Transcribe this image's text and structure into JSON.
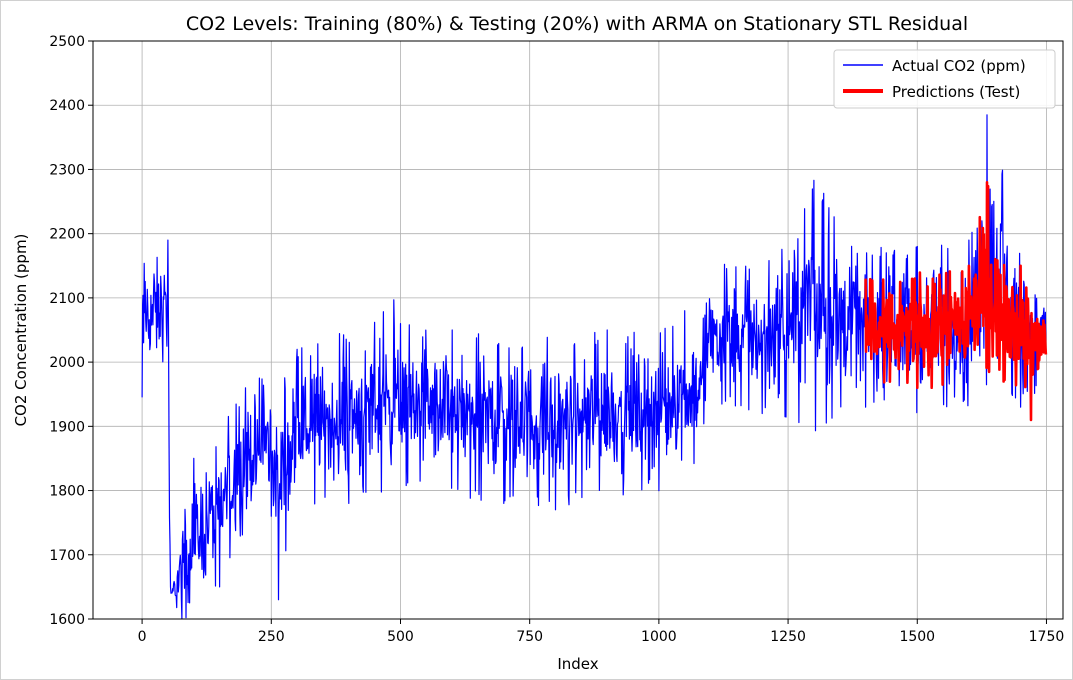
{
  "chart_data": {
    "type": "line",
    "title": "CO2 Levels: Training (80%) & Testing (20%) with ARMA on Stationary STL Residual",
    "xlabel": "Index",
    "ylabel": "CO2 Concentration (ppm)",
    "xlim": [
      -95,
      1782
    ],
    "ylim": [
      1600,
      2500
    ],
    "grid": true,
    "legend_position": "top-right",
    "x_ticks": [
      0,
      250,
      500,
      750,
      1000,
      1250,
      1500,
      1750
    ],
    "y_ticks": [
      1600,
      1700,
      1800,
      1900,
      2000,
      2100,
      2200,
      2300,
      2400,
      2500
    ],
    "series": [
      {
        "name": "Actual CO2 (ppm)",
        "color": "#0000ff",
        "x_range": [
          0,
          1749
        ],
        "approx_envelope": [
          {
            "x": 0,
            "low": 1945,
            "high": 2195
          },
          {
            "x": 50,
            "low": 1980,
            "high": 2190
          },
          {
            "x": 55,
            "low": 1600,
            "high": 1660
          },
          {
            "x": 100,
            "low": 1600,
            "high": 1850
          },
          {
            "x": 150,
            "low": 1650,
            "high": 1900
          },
          {
            "x": 200,
            "low": 1740,
            "high": 1960
          },
          {
            "x": 250,
            "low": 1760,
            "high": 1990
          },
          {
            "x": 264,
            "low": 1630,
            "high": 1980
          },
          {
            "x": 300,
            "low": 1770,
            "high": 2020
          },
          {
            "x": 400,
            "low": 1780,
            "high": 2050
          },
          {
            "x": 487,
            "low": 1800,
            "high": 2097
          },
          {
            "x": 500,
            "low": 1800,
            "high": 2060
          },
          {
            "x": 600,
            "low": 1790,
            "high": 2050
          },
          {
            "x": 700,
            "low": 1780,
            "high": 2040
          },
          {
            "x": 800,
            "low": 1770,
            "high": 2040
          },
          {
            "x": 900,
            "low": 1790,
            "high": 2050
          },
          {
            "x": 1000,
            "low": 1800,
            "high": 2060
          },
          {
            "x": 1050,
            "low": 1830,
            "high": 2080
          },
          {
            "x": 1085,
            "low": 1850,
            "high": 2090
          },
          {
            "x": 1090,
            "low": 1940,
            "high": 2150
          },
          {
            "x": 1200,
            "low": 1920,
            "high": 2160
          },
          {
            "x": 1300,
            "low": 1890,
            "high": 2283
          },
          {
            "x": 1400,
            "low": 1930,
            "high": 2180
          },
          {
            "x": 1500,
            "low": 1920,
            "high": 2180
          },
          {
            "x": 1600,
            "low": 1930,
            "high": 2190
          },
          {
            "x": 1635,
            "low": 1960,
            "high": 2385
          },
          {
            "x": 1700,
            "low": 1930,
            "high": 2200
          },
          {
            "x": 1749,
            "low": 1960,
            "high": 2120
          }
        ]
      },
      {
        "name": "Predictions (Test)",
        "color": "#ff0000",
        "x_range": [
          1400,
          1749
        ],
        "approx_envelope": [
          {
            "x": 1400,
            "low": 1965,
            "high": 2130
          },
          {
            "x": 1500,
            "low": 1960,
            "high": 2140
          },
          {
            "x": 1600,
            "low": 1960,
            "high": 2150
          },
          {
            "x": 1635,
            "low": 1980,
            "high": 2280
          },
          {
            "x": 1700,
            "low": 1955,
            "high": 2150
          },
          {
            "x": 1720,
            "low": 1910,
            "high": 2145
          },
          {
            "x": 1749,
            "low": 1985,
            "high": 2090
          }
        ]
      }
    ]
  }
}
